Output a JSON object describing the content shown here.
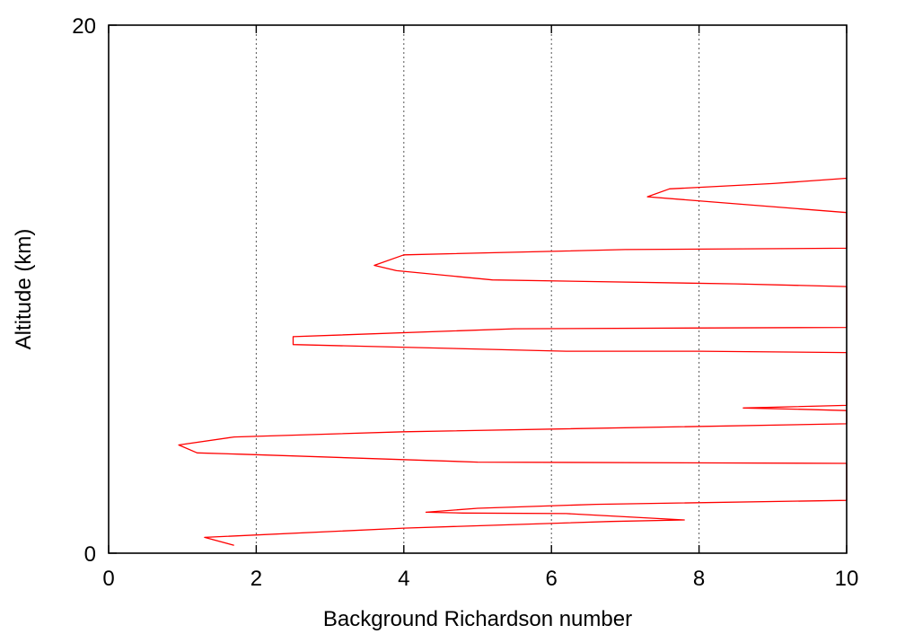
{
  "chart_data": {
    "type": "line",
    "title": "",
    "xlabel": "Background Richardson number",
    "ylabel": "Altitude (km)",
    "xlim": [
      0,
      10
    ],
    "ylim": [
      0,
      20
    ],
    "xticks": [
      0,
      2,
      4,
      6,
      8,
      10
    ],
    "xtick_labels": [
      "0",
      "2",
      "4",
      "6",
      "8",
      "10"
    ],
    "yticks": [
      0,
      20
    ],
    "ytick_labels": [
      "0",
      "20"
    ],
    "grid": "vertical dotted lines at x ticks",
    "legend": "none",
    "series": [
      {
        "color": "#ff0000",
        "points": [
          [
            1.7,
            0.3
          ],
          [
            1.3,
            0.6
          ],
          [
            4.0,
            0.95
          ],
          [
            6.8,
            1.2
          ],
          [
            7.8,
            1.26
          ],
          [
            6.2,
            1.5
          ],
          [
            4.8,
            1.52
          ],
          [
            4.3,
            1.55
          ],
          [
            5.0,
            1.7
          ],
          [
            6.6,
            1.85
          ],
          [
            10.0,
            2.0
          ],
          [
            10.0,
            3.4
          ],
          [
            5.0,
            3.45
          ],
          [
            1.8,
            3.75
          ],
          [
            1.2,
            3.8
          ],
          [
            0.95,
            4.1
          ],
          [
            1.7,
            4.4
          ],
          [
            4.0,
            4.6
          ],
          [
            10.0,
            4.9
          ],
          [
            10.0,
            5.4
          ],
          [
            9.4,
            5.45
          ],
          [
            8.6,
            5.5
          ],
          [
            10.0,
            5.6
          ],
          [
            10.0,
            7.6
          ],
          [
            8.0,
            7.65
          ],
          [
            6.2,
            7.65
          ],
          [
            2.5,
            7.9
          ],
          [
            2.5,
            8.2
          ],
          [
            5.5,
            8.5
          ],
          [
            10.0,
            8.55
          ],
          [
            10.0,
            10.1
          ],
          [
            8.5,
            10.2
          ],
          [
            5.2,
            10.35
          ],
          [
            3.9,
            10.7
          ],
          [
            3.6,
            10.9
          ],
          [
            4.0,
            11.3
          ],
          [
            7.0,
            11.5
          ],
          [
            10.0,
            11.55
          ],
          [
            10.0,
            12.9
          ],
          [
            8.2,
            13.3
          ],
          [
            7.3,
            13.5
          ],
          [
            7.6,
            13.8
          ],
          [
            9.0,
            14.0
          ],
          [
            10.0,
            14.2
          ]
        ]
      }
    ]
  }
}
